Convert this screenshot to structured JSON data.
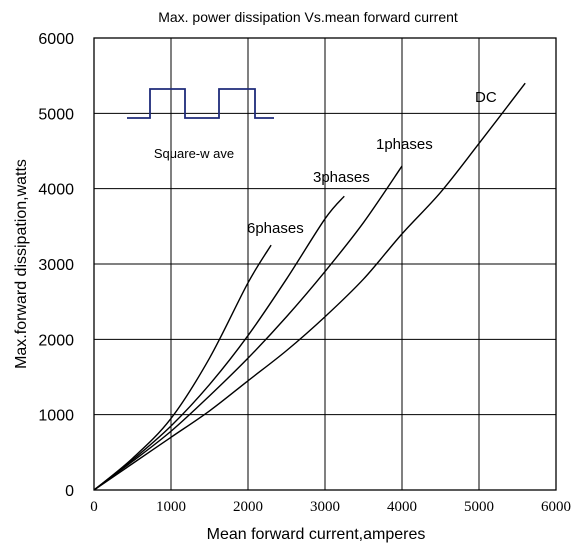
{
  "chart_data": {
    "type": "line",
    "title": "Max. power dissipation Vs.mean forward current",
    "xlabel": "Mean forward  current,amperes",
    "ylabel": "Max.forward dissipation,watts",
    "xlim": [
      0,
      6000
    ],
    "ylim": [
      0,
      6000
    ],
    "x_ticks": [
      "0",
      "1000",
      "2000",
      "3000",
      "4000",
      "5000",
      "6000"
    ],
    "y_ticks": [
      "0",
      "1000",
      "2000",
      "3000",
      "4000",
      "5000",
      "6000"
    ],
    "grid": true,
    "series": [
      {
        "name": "6phases",
        "x": [
          0,
          500,
          1000,
          1500,
          2000,
          2300
        ],
        "y": [
          0,
          420,
          950,
          1750,
          2750,
          3250
        ]
      },
      {
        "name": "3phases",
        "x": [
          0,
          500,
          1000,
          1500,
          2000,
          2500,
          3000,
          3250
        ],
        "y": [
          0,
          400,
          850,
          1400,
          2050,
          2800,
          3600,
          3900
        ]
      },
      {
        "name": "1phases",
        "x": [
          0,
          500,
          1000,
          1500,
          2000,
          2500,
          3000,
          3500,
          4000
        ],
        "y": [
          0,
          380,
          780,
          1250,
          1750,
          2300,
          2900,
          3550,
          4300
        ]
      },
      {
        "name": "DC",
        "x": [
          0,
          500,
          1000,
          1500,
          2000,
          2500,
          3000,
          3500,
          4000,
          4500,
          5000,
          5600
        ],
        "y": [
          0,
          350,
          700,
          1050,
          1450,
          1850,
          2300,
          2800,
          3400,
          3950,
          4600,
          5400
        ]
      }
    ],
    "annotations": [
      {
        "text": "Square-w ave",
        "kind": "inset-waveform"
      }
    ],
    "colors": {
      "curve": "#000000",
      "grid": "#000000",
      "waveform": "#1f2b7a"
    }
  }
}
